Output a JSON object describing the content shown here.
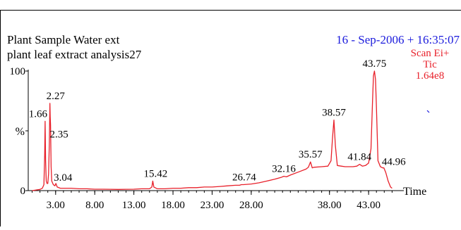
{
  "header": {
    "title_line1": "Plant Sample Water ext",
    "title_line2": "plant leaf extract analysis27",
    "timestamp": "16 - Sep-2006 + 16:35:07",
    "scan_mode": "Scan Ei+",
    "trace": "Tic",
    "intensity": "1.64e8"
  },
  "colors": {
    "trace": "#e8202a",
    "timestamp": "#1a1adc",
    "axis": "#000000",
    "text": "#000000"
  },
  "chart_data": {
    "type": "line",
    "title": "Plant Sample Water ext",
    "subtitle": "plant leaf extract analysis27",
    "xlabel": "Time",
    "ylabel": "%",
    "xlim": [
      -0.5,
      47.5
    ],
    "ylim": [
      0,
      100
    ],
    "x_ticks": [
      3.0,
      8.0,
      13.0,
      18.0,
      23.0,
      28.0,
      38.0,
      43.0
    ],
    "x_tick_labels": [
      "3.00",
      "8.00",
      "13.00",
      "18.00",
      "23.00",
      "28.00",
      "38.00",
      "43.00"
    ],
    "y_ticks": [
      0,
      100
    ],
    "y_tick_labels": [
      "0",
      "100"
    ],
    "y_marker": {
      "value": 50,
      "label": "%"
    },
    "peaks": [
      {
        "rt": 1.66,
        "label": "1.66",
        "value": 58
      },
      {
        "rt": 2.27,
        "label": "2.27",
        "value": 73
      },
      {
        "rt": 2.35,
        "label": "2.35",
        "value": 55
      },
      {
        "rt": 3.04,
        "label": "3.04",
        "value": 6
      },
      {
        "rt": 15.42,
        "label": "15.42",
        "value": 8
      },
      {
        "rt": 26.74,
        "label": "26.74",
        "value": 5
      },
      {
        "rt": 32.16,
        "label": "32.16",
        "value": 12
      },
      {
        "rt": 35.57,
        "label": "35.57",
        "value": 24
      },
      {
        "rt": 38.57,
        "label": "38.57",
        "value": 59
      },
      {
        "rt": 41.84,
        "label": "41.84",
        "value": 22
      },
      {
        "rt": 43.75,
        "label": "43.75",
        "value": 100
      },
      {
        "rt": 44.96,
        "label": "44.96",
        "value": 19
      }
    ],
    "series": [
      {
        "x": [
          0.0,
          0.5,
          1.0,
          1.3,
          1.5,
          1.6,
          1.66,
          1.72,
          1.8,
          1.9,
          2.0,
          2.1,
          2.2,
          2.27,
          2.31,
          2.35,
          2.42,
          2.5,
          2.7,
          2.9,
          3.04,
          3.2,
          3.6,
          4.0,
          5.0,
          6.0,
          7.0,
          8.0,
          9.0,
          10.0,
          11.0,
          12.0,
          13.0,
          14.0,
          15.0,
          15.3,
          15.42,
          15.55,
          16.0,
          17.0,
          18.0,
          19.0,
          20.0,
          21.0,
          22.0,
          23.0,
          24.0,
          25.0,
          26.0,
          26.5,
          26.74,
          27.0,
          28.0,
          29.0,
          30.0,
          31.0,
          31.8,
          32.16,
          32.5,
          33.0,
          34.0,
          35.0,
          35.3,
          35.57,
          35.8,
          36.0,
          37.0,
          37.8,
          38.2,
          38.4,
          38.57,
          38.75,
          39.0,
          39.5,
          40.0,
          40.5,
          41.0,
          41.5,
          41.84,
          42.2,
          42.6,
          43.0,
          43.3,
          43.5,
          43.62,
          43.75,
          43.88,
          44.0,
          44.2,
          44.5,
          44.8,
          44.96,
          45.2,
          45.5,
          45.8,
          46.0
        ],
        "y": [
          0,
          0.5,
          1,
          2,
          5,
          30,
          58,
          25,
          8,
          6,
          6,
          14,
          40,
          73,
          62,
          55,
          20,
          8,
          5,
          4,
          6,
          3,
          2,
          2,
          2,
          1.5,
          1.5,
          1.2,
          1.2,
          1.1,
          1,
          1.1,
          1.2,
          1.5,
          1.5,
          3,
          8,
          3,
          1.5,
          1.5,
          2,
          2,
          2.5,
          2.5,
          3,
          3,
          3.5,
          4,
          4.5,
          4.5,
          5,
          5,
          5.5,
          6.5,
          8,
          9.5,
          11,
          12,
          11.5,
          13,
          15.5,
          18,
          19.5,
          24,
          19,
          19.5,
          20,
          20.5,
          25,
          45,
          59,
          38,
          21,
          20.5,
          20,
          20,
          20,
          20.5,
          22,
          20.5,
          21,
          23,
          35,
          75,
          96,
          100,
          93,
          70,
          25,
          20,
          19,
          19,
          15,
          8,
          3,
          2
        ]
      }
    ]
  }
}
